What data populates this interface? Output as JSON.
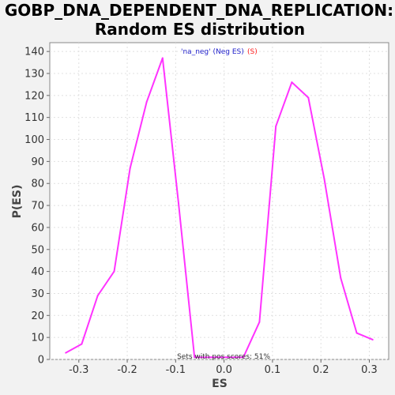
{
  "chart_data": {
    "type": "line",
    "title_line1": "GOBP_DNA_DEPENDENT_DNA_REPLICATION:",
    "title_line2": "Random ES distribution",
    "xlabel": "ES",
    "ylabel": "P(ES)",
    "xlim": [
      -0.36,
      0.34
    ],
    "ylim": [
      0,
      144
    ],
    "x_ticks": [
      -0.3,
      -0.2,
      -0.1,
      0.0,
      0.1,
      0.2,
      0.3
    ],
    "x_tick_labels": [
      "-0.3",
      "-0.2",
      "-0.1",
      "0.0",
      "0.1",
      "0.2",
      "0.3"
    ],
    "y_ticks": [
      0,
      10,
      20,
      30,
      40,
      50,
      60,
      70,
      80,
      90,
      100,
      110,
      120,
      130,
      140
    ],
    "y_tick_labels": [
      "0",
      "10",
      "20",
      "30",
      "40",
      "50",
      "60",
      "70",
      "80",
      "90",
      "100",
      "110",
      "120",
      "130",
      "140"
    ],
    "grid": true,
    "series": [
      {
        "color": "#ff33ff",
        "x": [
          -0.327,
          -0.294,
          -0.261,
          -0.227,
          -0.194,
          -0.16,
          -0.127,
          -0.094,
          -0.061,
          -0.027,
          0.006,
          0.04,
          0.073,
          0.107,
          0.14,
          0.174,
          0.207,
          0.241,
          0.274,
          0.307
        ],
        "y": [
          3,
          7,
          29,
          40,
          87,
          117,
          137,
          71,
          1,
          1,
          1,
          1,
          17,
          106,
          126,
          119,
          82,
          37,
          12,
          9
        ]
      }
    ],
    "annotations": {
      "legend_blue": "'na_neg' (Neg ES)",
      "legend_red": "(S)",
      "legend_blue_color": "#2222cc",
      "legend_red_color": "#ff2222",
      "bottom": "Sets with pos scores: 51%"
    }
  }
}
